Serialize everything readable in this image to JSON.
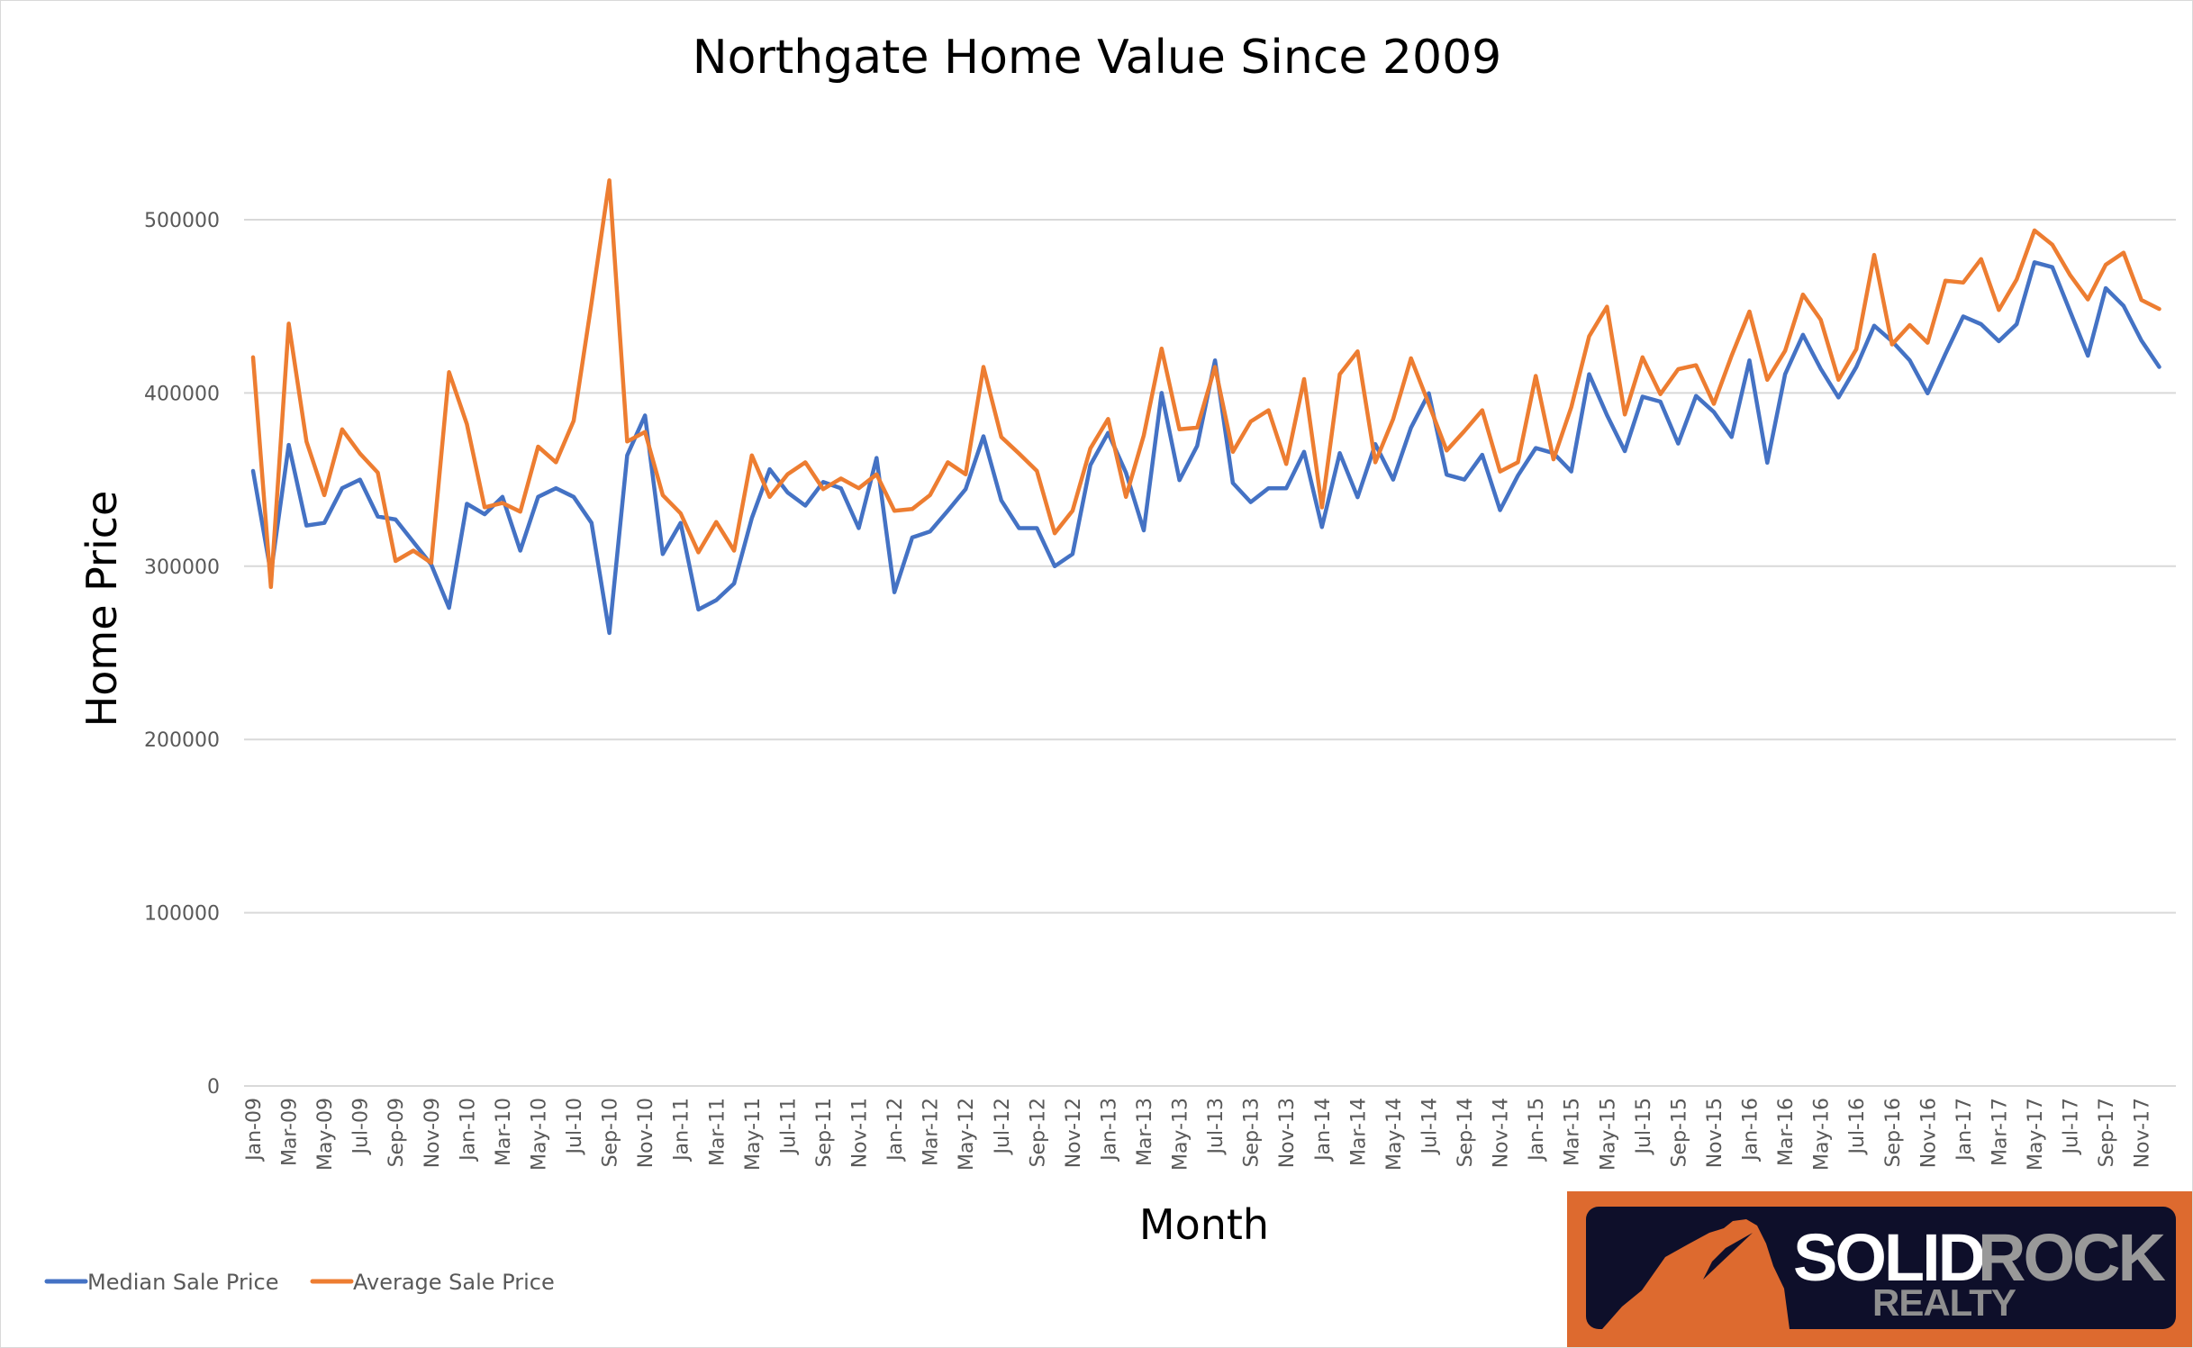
{
  "chart_data": {
    "type": "line",
    "title": "Northgate Home Value Since 2009",
    "xlabel": "Month",
    "ylabel": "Home Price",
    "ylim": [
      0,
      500000
    ],
    "y_ticks": [
      "0",
      "100000",
      "200000",
      "300000",
      "400000",
      "500000"
    ],
    "y_tick_values": [
      0,
      100000,
      200000,
      300000,
      400000,
      500000
    ],
    "grid": true,
    "legend_position": "bottom-left",
    "x_tick_labels": [
      "Jan-09",
      "Mar-09",
      "May-09",
      "Jul-09",
      "Sep-09",
      "Nov-09",
      "Jan-10",
      "Mar-10",
      "May-10",
      "Jul-10",
      "Sep-10",
      "Nov-10",
      "Jan-11",
      "Mar-11",
      "May-11",
      "Jul-11",
      "Sep-11",
      "Nov-11",
      "Jan-12",
      "Mar-12",
      "May-12",
      "Jul-12",
      "Sep-12",
      "Nov-12",
      "Jan-13",
      "Mar-13",
      "May-13",
      "Jul-13",
      "Sep-13",
      "Nov-13",
      "Jan-14",
      "Mar-14",
      "May-14",
      "Jul-14",
      "Sep-14",
      "Nov-14",
      "Jan-15",
      "Mar-15",
      "May-15",
      "Jul-15",
      "Sep-15",
      "Nov-15",
      "Jan-16",
      "Mar-16",
      "May-16",
      "Jul-16",
      "Sep-16",
      "Nov-16",
      "Jan-17",
      "Mar-17",
      "May-17",
      "Jul-17",
      "Sep-17",
      "Nov-17"
    ],
    "series": [
      {
        "name": "Median Sale Price",
        "color": "#4472c4",
        "values": [
          355000,
          296000,
          370000,
          323500,
          325000,
          345000,
          350000,
          328700,
          327000,
          314000,
          301000,
          276000,
          336000,
          330000,
          340000,
          309000,
          340000,
          345000,
          340000,
          325000,
          261500,
          364000,
          387000,
          307000,
          325000,
          275000,
          280400,
          290000,
          327800,
          356000,
          342600,
          335000,
          348600,
          345000,
          322000,
          362500,
          285000,
          316600,
          320000,
          332000,
          344500,
          375000,
          338000,
          322000,
          322000,
          300000,
          307000,
          358400,
          377000,
          354000,
          320700,
          400000,
          349700,
          369500,
          418800,
          348000,
          337000,
          345000,
          345000,
          366000,
          322600,
          365300,
          339800,
          370500,
          350000,
          380000,
          399800,
          352800,
          350000,
          364300,
          332400,
          352300,
          368200,
          365300,
          354700,
          410800,
          387200,
          366400,
          397800,
          395000,
          370800,
          398300,
          389000,
          374600,
          418800,
          359700,
          410800,
          433600,
          414000,
          397400,
          415000,
          438800,
          429900,
          418800,
          399800,
          422500,
          444200,
          439700,
          429900,
          439700,
          475400,
          472600,
          447000,
          421500,
          460500,
          450300,
          430300,
          415000
        ]
      },
      {
        "name": "Average Sale Price",
        "color": "#ed7d31",
        "values": [
          420600,
          288000,
          440000,
          372000,
          341000,
          379000,
          365000,
          354000,
          303000,
          309000,
          302000,
          412000,
          382000,
          334000,
          336500,
          331500,
          369000,
          360000,
          384000,
          452000,
          522700,
          372000,
          377500,
          341000,
          330500,
          308000,
          325500,
          309000,
          364000,
          340000,
          353000,
          360000,
          344500,
          350600,
          345000,
          353000,
          332000,
          333000,
          341000,
          360000,
          353000,
          415000,
          374600,
          365000,
          355000,
          319000,
          332000,
          368000,
          385000,
          340000,
          375500,
          425600,
          379000,
          380000,
          415000,
          366000,
          383500,
          390000,
          359000,
          408000,
          334000,
          410800,
          424000,
          360000,
          385000,
          420000,
          393600,
          366800,
          378000,
          390000,
          354700,
          360000,
          409800,
          361700,
          391800,
          432700,
          449800,
          387600,
          420600,
          399300,
          413700,
          416000,
          393700,
          421500,
          447000,
          407600,
          424300,
          456800,
          442300,
          407600,
          425300,
          479700,
          428000,
          439200,
          429000,
          464800,
          463700,
          477300,
          447900,
          465500,
          493800,
          485600,
          468000,
          454000,
          474000,
          481000,
          453700,
          448500
        ]
      }
    ]
  },
  "logo": {
    "word1": "SOLID",
    "word2": "ROCK",
    "word3": "REALTY",
    "orange": "#dd6a2f",
    "navy": "#0e0f2a"
  }
}
